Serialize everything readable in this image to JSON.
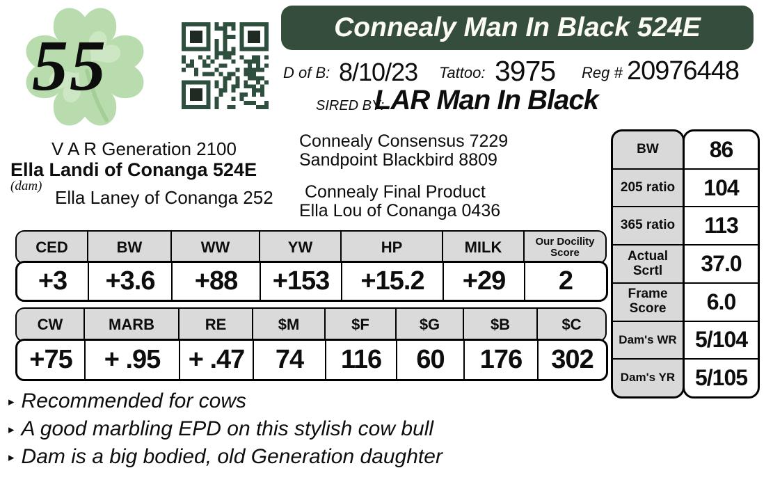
{
  "colors": {
    "banner_green": "#354d3c",
    "qr_green": "#2e4f3d",
    "qr_dark": "#1f2a22",
    "header_gray": "#dadada",
    "clover_green": "#b9dcae",
    "clover_light": "#d2e9c9"
  },
  "icons": {
    "bullet": "▸",
    "clover": "four-leaf-clover",
    "qr": "qr-code"
  },
  "lot_number": "55",
  "banner": {
    "title": "Connealy Man In Black 524E"
  },
  "info": {
    "dob_label": "D of B:",
    "dob_value": "8/10/23",
    "tattoo_label": "Tattoo:",
    "tattoo_value": "3975",
    "reg_label": "Reg #",
    "reg_value": "20976448",
    "sired_by_label": "SIRED BY:",
    "sire_name": "LAR Man In Black"
  },
  "pedigree": {
    "left_top": "V A R Generation 2100",
    "dam_name": "Ella Landi of Conanga 524E",
    "dam_label": "(dam)",
    "left_bottom": "Ella Laney of Conanga 252",
    "right_top": [
      "Connealy Consensus 7229",
      "Sandpoint Blackbird 8809"
    ],
    "right_bottom": [
      "Connealy Final Product",
      "Ella Lou of Conanga 0436"
    ]
  },
  "epd_primary": {
    "headers": [
      "CED",
      "BW",
      "WW",
      "YW",
      "HP",
      "MILK",
      "Our Docility Score"
    ],
    "values": [
      "+3",
      "+3.6",
      "+88",
      "+153",
      "+15.2",
      "+29",
      "2"
    ]
  },
  "epd_dollar": {
    "headers": [
      "CW",
      "MARB",
      "RE",
      "$M",
      "$F",
      "$G",
      "$B",
      "$C"
    ],
    "values": [
      "+75",
      "+ .95",
      "+ .47",
      "74",
      "116",
      "60",
      "176",
      "302"
    ]
  },
  "performance": {
    "rows": [
      {
        "label": "BW",
        "value": "86"
      },
      {
        "label": "205 ratio",
        "value": "104"
      },
      {
        "label": "365 ratio",
        "value": "113"
      },
      {
        "label": "Actual Scrtl",
        "value": "37.0"
      },
      {
        "label": "Frame Score",
        "value": "6.0"
      },
      {
        "label": "Dam's WR",
        "value": "5/104"
      },
      {
        "label": "Dam's YR",
        "value": "5/105"
      }
    ]
  },
  "notes": [
    "Recommended for cows",
    "A good marbling EPD on this stylish cow bull",
    "Dam is a big bodied, old Generation daughter"
  ]
}
